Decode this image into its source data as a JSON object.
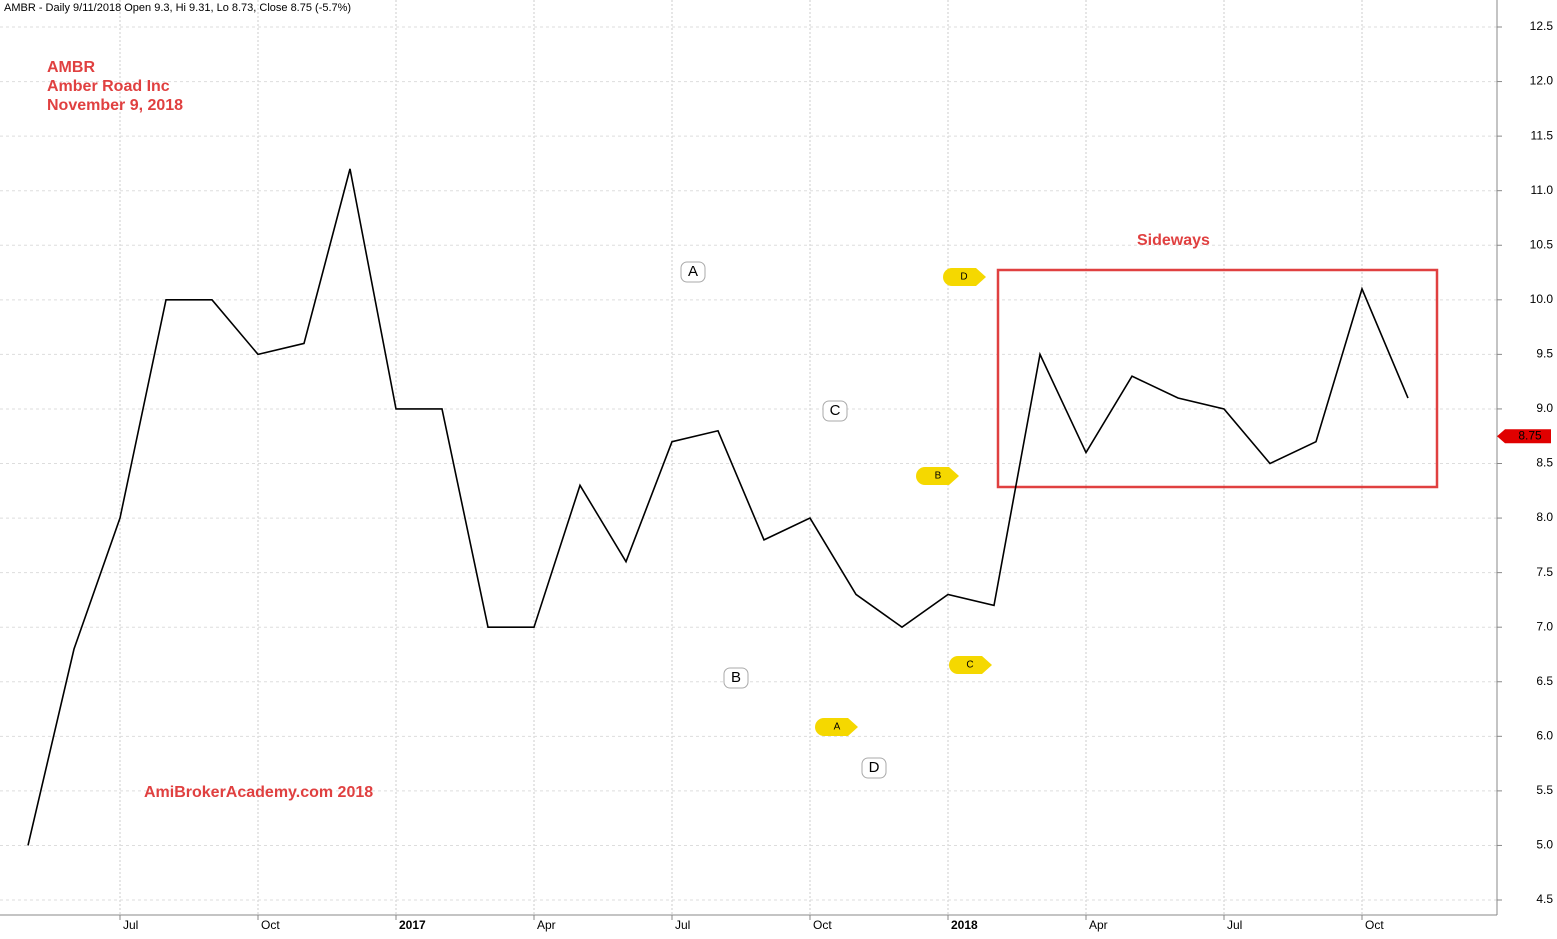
{
  "chart_data": {
    "type": "line",
    "title": "AMBR - Daily 9/11/2018 Open 9.3, Hi 9.31, Lo 8.73, Close 8.75 (-5.7%)",
    "annotations": [
      "AMBR",
      "Amber Road Inc",
      "November 9, 2018",
      "AmiBrokerAcademy.com 2018",
      "Sideways"
    ],
    "wave_labels": [
      "A",
      "B",
      "C",
      "D"
    ],
    "marker_labels": [
      "A",
      "B",
      "C",
      "D"
    ],
    "categories": [
      null,
      null,
      "Jul",
      null,
      null,
      "Oct",
      null,
      null,
      "2017",
      null,
      null,
      "Apr",
      null,
      null,
      "Jul",
      null,
      null,
      "Oct",
      null,
      null,
      "2018",
      null,
      null,
      "Apr",
      null,
      null,
      "Jul",
      null,
      null,
      "Oct",
      null
    ],
    "series": [
      {
        "name": "AMBR",
        "color": "#000000",
        "values": [
          5.0,
          6.8,
          8.0,
          10.0,
          10.0,
          9.5,
          9.6,
          11.2,
          9.0,
          9.0,
          7.0,
          7.0,
          8.3,
          7.6,
          8.7,
          8.8,
          7.8,
          8.0,
          7.3,
          7.0,
          7.3,
          7.2,
          9.5,
          8.6,
          9.3,
          9.1,
          9.0,
          8.5,
          8.7,
          10.1,
          9.1
        ]
      }
    ],
    "last_close": 8.75,
    "ylim": [
      4.5,
      12.5
    ],
    "yticks": [
      4.5,
      {
        "value": 5,
        "label": "5.0"
      },
      5.5,
      {
        "value": 6,
        "label": "6.0"
      },
      6.5,
      {
        "value": 7,
        "label": "7.0"
      },
      7.5,
      {
        "value": 8,
        "label": "8.0"
      },
      8.5,
      {
        "value": 9,
        "label": "9.0"
      },
      9.5,
      {
        "value": 10,
        "label": "10.0"
      },
      10.5,
      {
        "value": 11,
        "label": "11.0"
      },
      11.5,
      {
        "value": 12,
        "label": "12.0"
      },
      12.5
    ],
    "grid": true
  }
}
